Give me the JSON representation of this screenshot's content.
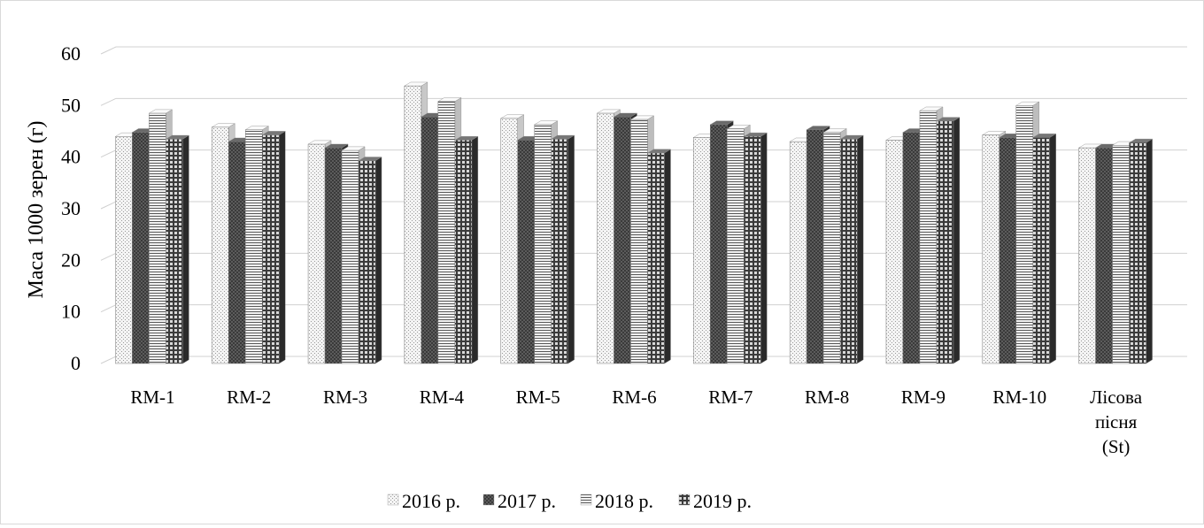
{
  "chart_data": {
    "type": "bar",
    "ylabel": "Маса 1000 зерен (г)",
    "ylim": [
      0,
      60
    ],
    "yticks": [
      0,
      10,
      20,
      30,
      40,
      50,
      60
    ],
    "grid": true,
    "legend_position": "bottom",
    "categories": [
      [
        "RM-1"
      ],
      [
        "RM-2"
      ],
      [
        "RM-3"
      ],
      [
        "RM-4"
      ],
      [
        "RM-5"
      ],
      [
        "RM-6"
      ],
      [
        "RM-7"
      ],
      [
        "RM-8"
      ],
      [
        "RM-9"
      ],
      [
        "RM-10"
      ],
      [
        "Лісова",
        "пісня",
        "(St)"
      ]
    ],
    "series": [
      {
        "name": "2016 р.",
        "pattern": "dots",
        "values": [
          44.0,
          45.8,
          42.5,
          53.8,
          47.5,
          48.5,
          43.8,
          43.0,
          43.3,
          44.3,
          41.8
        ]
      },
      {
        "name": "2017 р.",
        "pattern": "checker",
        "values": [
          44.8,
          43.0,
          41.8,
          47.8,
          43.3,
          47.8,
          46.3,
          45.3,
          44.8,
          43.8,
          41.8
        ]
      },
      {
        "name": "2018 р.",
        "pattern": "hlines",
        "values": [
          48.5,
          45.3,
          41.3,
          50.8,
          46.3,
          47.3,
          45.5,
          44.8,
          49.0,
          50.0,
          42.3
        ]
      },
      {
        "name": "2019 р.",
        "pattern": "grid",
        "values": [
          43.5,
          44.3,
          39.3,
          43.3,
          43.5,
          40.8,
          44.0,
          43.5,
          47.0,
          43.8,
          42.8
        ]
      }
    ]
  }
}
